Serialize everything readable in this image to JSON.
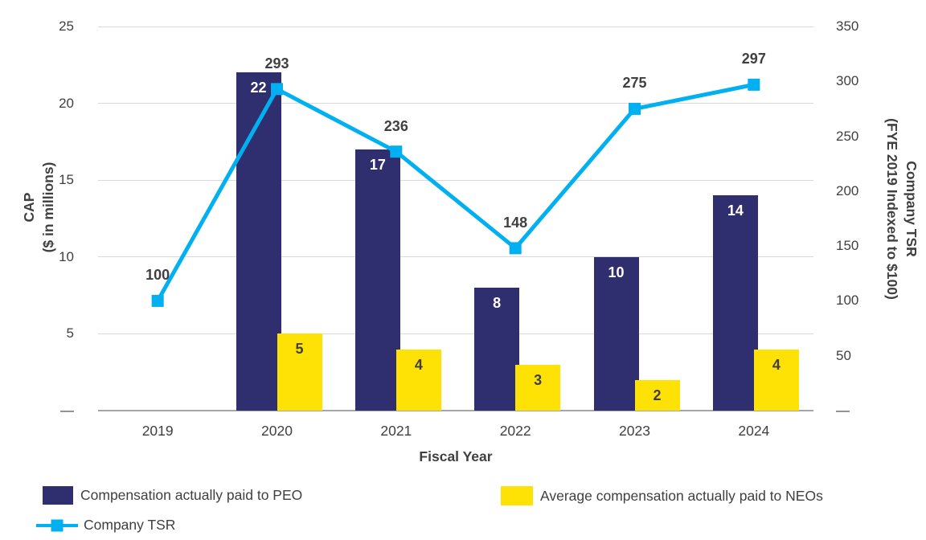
{
  "chart_data": {
    "type": "combo-bar-line",
    "categories": [
      "2019",
      "2020",
      "2021",
      "2022",
      "2023",
      "2024"
    ],
    "x_axis": {
      "title": "Fiscal Year"
    },
    "left_axis": {
      "title": [
        "CAP",
        "($ in millions)"
      ],
      "min": 0,
      "max": 25,
      "tick_step": 5,
      "tick_labels": [
        "25",
        "20",
        "15",
        "10",
        "5",
        "—"
      ]
    },
    "right_axis": {
      "title": [
        "Company TSR",
        "(FYE 2019 Indexed to $100)"
      ],
      "min": 0,
      "max": 350,
      "tick_step": 50,
      "tick_labels": [
        "350",
        "300",
        "250",
        "200",
        "150",
        "100",
        "50",
        "—"
      ]
    },
    "series": [
      {
        "name": "Compensation actually paid to PEO",
        "type": "bar",
        "axis": "left",
        "color": "#2F2E6F",
        "label_color": "#FFFFFF",
        "values": [
          null,
          22,
          17,
          8,
          10,
          14
        ]
      },
      {
        "name": "Average compensation actually paid to NEOs",
        "type": "bar",
        "axis": "left",
        "color": "#FFE205",
        "label_color": "#3F3F3F",
        "values": [
          null,
          5,
          4,
          3,
          2,
          4
        ]
      },
      {
        "name": "Company TSR",
        "type": "line",
        "axis": "right",
        "color": "#00B0F0",
        "label_color": "#404040",
        "marker": "square",
        "values": [
          100,
          293,
          236,
          148,
          275,
          297
        ]
      }
    ],
    "legend": {
      "position": "bottom",
      "items": [
        {
          "label": "Compensation actually paid to PEO",
          "swatch": "square"
        },
        {
          "label": "Average compensation actually paid to NEOs",
          "swatch": "square"
        },
        {
          "label": "Company TSR",
          "swatch": "line-marker"
        }
      ]
    },
    "grid": true,
    "colors": {
      "gridline": "#D9D9D9",
      "axis_line": "#A6A6A6",
      "text": "#404040",
      "background": "#FFFFFF"
    }
  }
}
